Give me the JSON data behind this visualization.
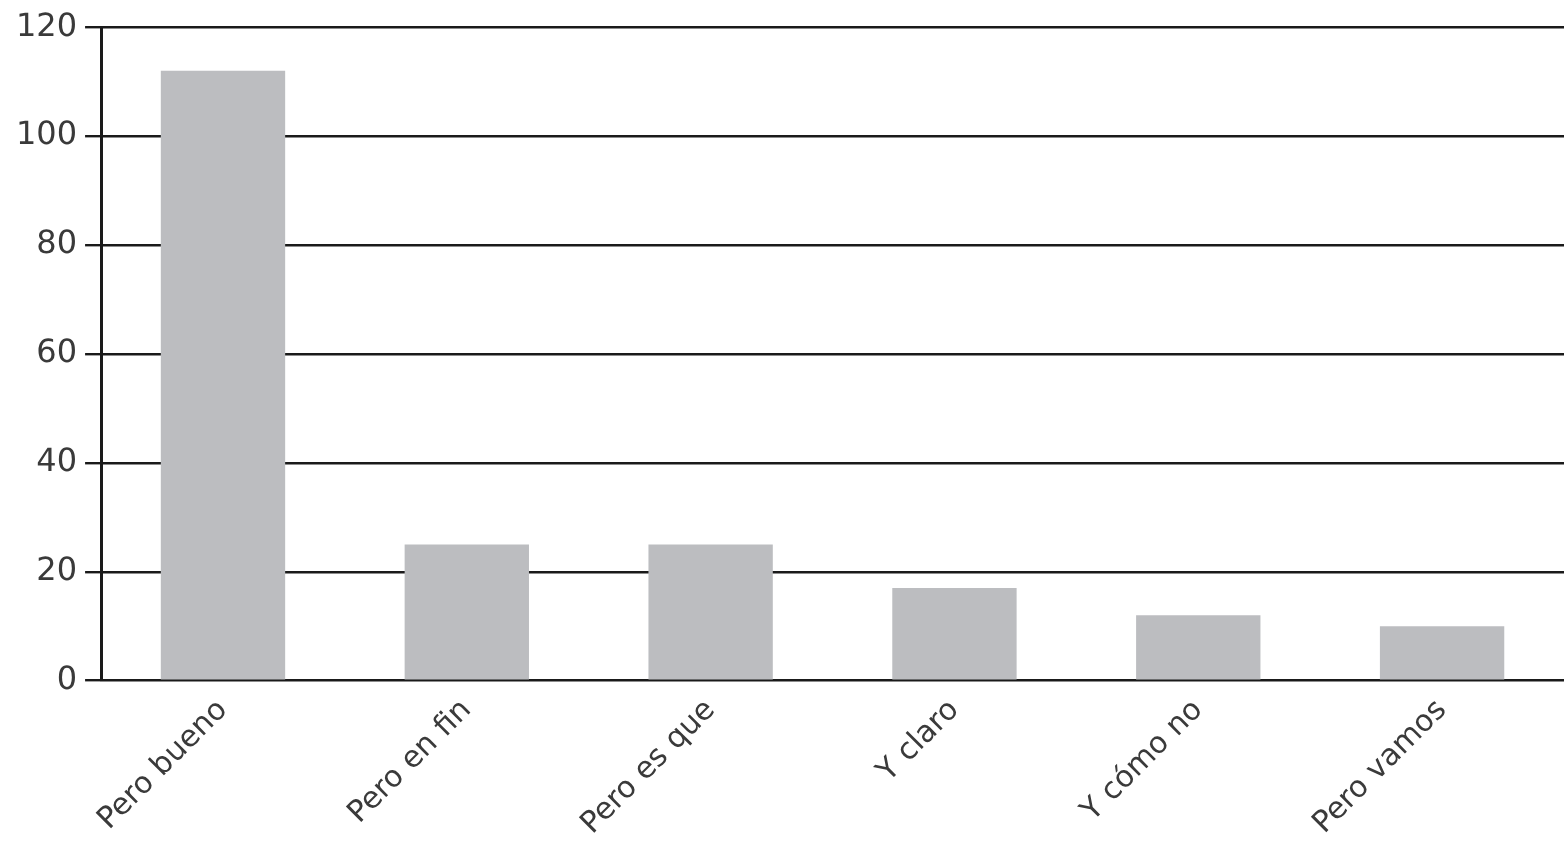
{
  "chart_data": {
    "type": "bar",
    "categories": [
      "Pero bueno",
      "Pero en fin",
      "Pero es que",
      "Y claro",
      "Y cómo no",
      "Pero vamos"
    ],
    "values": [
      112,
      25,
      25,
      17,
      12,
      10
    ],
    "color": "#bcbdc0",
    "ylim": [
      0,
      120
    ],
    "yticks": [
      0,
      20,
      40,
      60,
      80,
      100,
      120
    ],
    "grid": "y"
  }
}
